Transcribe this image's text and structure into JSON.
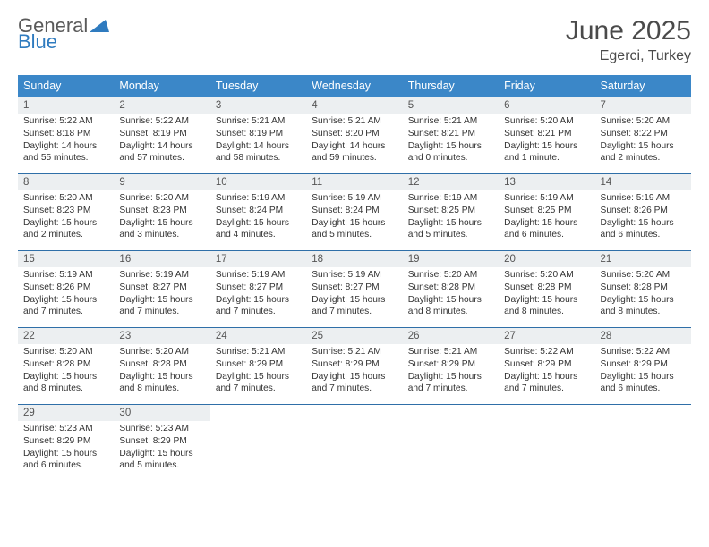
{
  "brand": {
    "text_top": "General",
    "text_bottom": "Blue",
    "mark_color": "#2f7bbf",
    "top_color": "#5a5a5a"
  },
  "header": {
    "title": "June 2025",
    "subtitle": "Egerci, Turkey"
  },
  "colors": {
    "header_bg": "#3b87c8",
    "header_text": "#ffffff",
    "daynum_bg": "#eceff1",
    "border": "#2f6fa8"
  },
  "weekdays": [
    "Sunday",
    "Monday",
    "Tuesday",
    "Wednesday",
    "Thursday",
    "Friday",
    "Saturday"
  ],
  "days": [
    {
      "n": "1",
      "sr": "5:22 AM",
      "ss": "8:18 PM",
      "dl": "14 hours and 55 minutes."
    },
    {
      "n": "2",
      "sr": "5:22 AM",
      "ss": "8:19 PM",
      "dl": "14 hours and 57 minutes."
    },
    {
      "n": "3",
      "sr": "5:21 AM",
      "ss": "8:19 PM",
      "dl": "14 hours and 58 minutes."
    },
    {
      "n": "4",
      "sr": "5:21 AM",
      "ss": "8:20 PM",
      "dl": "14 hours and 59 minutes."
    },
    {
      "n": "5",
      "sr": "5:21 AM",
      "ss": "8:21 PM",
      "dl": "15 hours and 0 minutes."
    },
    {
      "n": "6",
      "sr": "5:20 AM",
      "ss": "8:21 PM",
      "dl": "15 hours and 1 minute."
    },
    {
      "n": "7",
      "sr": "5:20 AM",
      "ss": "8:22 PM",
      "dl": "15 hours and 2 minutes."
    },
    {
      "n": "8",
      "sr": "5:20 AM",
      "ss": "8:23 PM",
      "dl": "15 hours and 2 minutes."
    },
    {
      "n": "9",
      "sr": "5:20 AM",
      "ss": "8:23 PM",
      "dl": "15 hours and 3 minutes."
    },
    {
      "n": "10",
      "sr": "5:19 AM",
      "ss": "8:24 PM",
      "dl": "15 hours and 4 minutes."
    },
    {
      "n": "11",
      "sr": "5:19 AM",
      "ss": "8:24 PM",
      "dl": "15 hours and 5 minutes."
    },
    {
      "n": "12",
      "sr": "5:19 AM",
      "ss": "8:25 PM",
      "dl": "15 hours and 5 minutes."
    },
    {
      "n": "13",
      "sr": "5:19 AM",
      "ss": "8:25 PM",
      "dl": "15 hours and 6 minutes."
    },
    {
      "n": "14",
      "sr": "5:19 AM",
      "ss": "8:26 PM",
      "dl": "15 hours and 6 minutes."
    },
    {
      "n": "15",
      "sr": "5:19 AM",
      "ss": "8:26 PM",
      "dl": "15 hours and 7 minutes."
    },
    {
      "n": "16",
      "sr": "5:19 AM",
      "ss": "8:27 PM",
      "dl": "15 hours and 7 minutes."
    },
    {
      "n": "17",
      "sr": "5:19 AM",
      "ss": "8:27 PM",
      "dl": "15 hours and 7 minutes."
    },
    {
      "n": "18",
      "sr": "5:19 AM",
      "ss": "8:27 PM",
      "dl": "15 hours and 7 minutes."
    },
    {
      "n": "19",
      "sr": "5:20 AM",
      "ss": "8:28 PM",
      "dl": "15 hours and 8 minutes."
    },
    {
      "n": "20",
      "sr": "5:20 AM",
      "ss": "8:28 PM",
      "dl": "15 hours and 8 minutes."
    },
    {
      "n": "21",
      "sr": "5:20 AM",
      "ss": "8:28 PM",
      "dl": "15 hours and 8 minutes."
    },
    {
      "n": "22",
      "sr": "5:20 AM",
      "ss": "8:28 PM",
      "dl": "15 hours and 8 minutes."
    },
    {
      "n": "23",
      "sr": "5:20 AM",
      "ss": "8:28 PM",
      "dl": "15 hours and 8 minutes."
    },
    {
      "n": "24",
      "sr": "5:21 AM",
      "ss": "8:29 PM",
      "dl": "15 hours and 7 minutes."
    },
    {
      "n": "25",
      "sr": "5:21 AM",
      "ss": "8:29 PM",
      "dl": "15 hours and 7 minutes."
    },
    {
      "n": "26",
      "sr": "5:21 AM",
      "ss": "8:29 PM",
      "dl": "15 hours and 7 minutes."
    },
    {
      "n": "27",
      "sr": "5:22 AM",
      "ss": "8:29 PM",
      "dl": "15 hours and 7 minutes."
    },
    {
      "n": "28",
      "sr": "5:22 AM",
      "ss": "8:29 PM",
      "dl": "15 hours and 6 minutes."
    },
    {
      "n": "29",
      "sr": "5:23 AM",
      "ss": "8:29 PM",
      "dl": "15 hours and 6 minutes."
    },
    {
      "n": "30",
      "sr": "5:23 AM",
      "ss": "8:29 PM",
      "dl": "15 hours and 5 minutes."
    }
  ],
  "labels": {
    "sunrise": "Sunrise: ",
    "sunset": "Sunset: ",
    "daylight": "Daylight: "
  },
  "layout": {
    "start_weekday": 0,
    "total_cells": 35
  }
}
